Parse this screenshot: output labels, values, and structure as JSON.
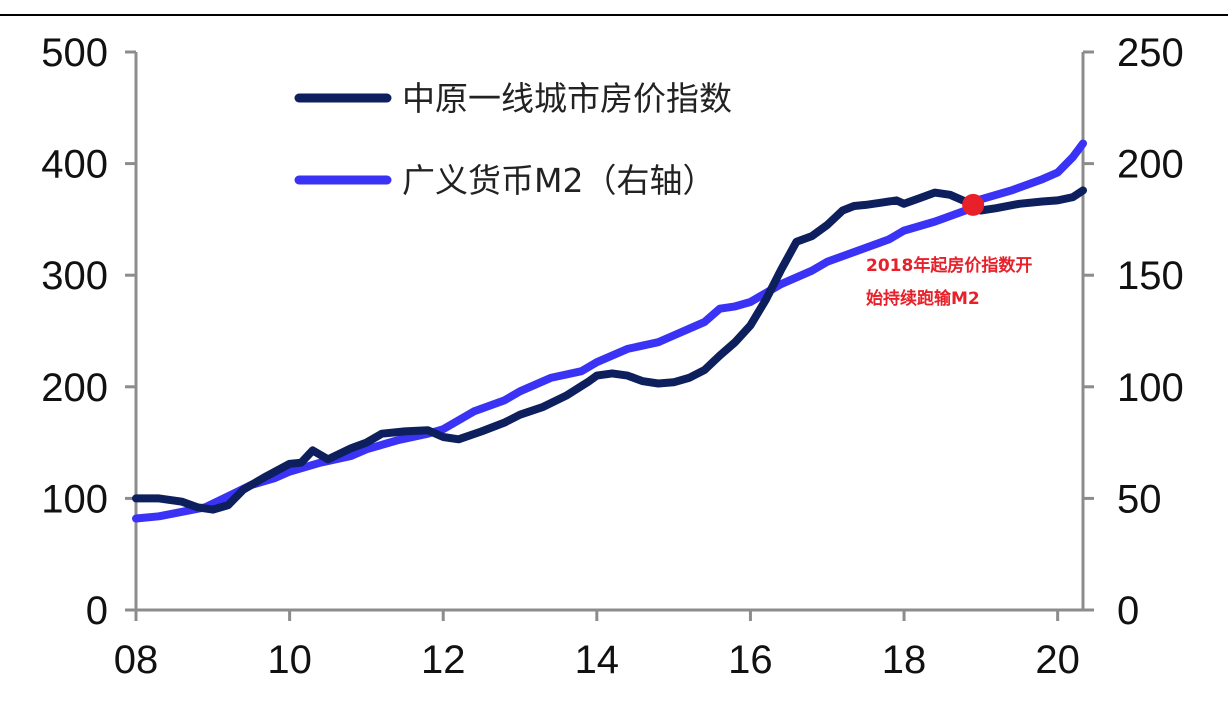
{
  "chart_data": {
    "type": "line",
    "title": "",
    "x_ticks": [
      "08",
      "10",
      "12",
      "14",
      "16",
      "18",
      "20"
    ],
    "xlim": [
      2008,
      2020.33
    ],
    "left_axis": {
      "ticks": [
        "0",
        "100",
        "200",
        "300",
        "400",
        "500"
      ],
      "ylim": [
        0,
        500
      ]
    },
    "right_axis": {
      "ticks": [
        "0",
        "50",
        "100",
        "150",
        "200",
        "250"
      ],
      "ylim": [
        0,
        250
      ]
    },
    "grid": false,
    "legend": {
      "placement": "top-left",
      "entries": [
        "中原一线城市房价指数",
        "广义货币M2（右轴）"
      ]
    },
    "series": [
      {
        "name": "中原一线城市房价指数",
        "axis": "left",
        "color": "#0d1f5c",
        "x": [
          2008.0,
          2008.3,
          2008.6,
          2008.8,
          2009.0,
          2009.2,
          2009.4,
          2009.7,
          2010.0,
          2010.15,
          2010.3,
          2010.5,
          2010.8,
          2011.0,
          2011.2,
          2011.5,
          2011.8,
          2012.0,
          2012.2,
          2012.5,
          2012.8,
          2013.0,
          2013.3,
          2013.6,
          2013.9,
          2014.0,
          2014.2,
          2014.4,
          2014.6,
          2014.8,
          2015.0,
          2015.2,
          2015.4,
          2015.6,
          2015.8,
          2016.0,
          2016.2,
          2016.4,
          2016.6,
          2016.8,
          2017.0,
          2017.2,
          2017.35,
          2017.5,
          2017.7,
          2017.9,
          2018.0,
          2018.2,
          2018.4,
          2018.6,
          2018.8,
          2019.0,
          2019.2,
          2019.5,
          2019.8,
          2020.0,
          2020.2,
          2020.33
        ],
        "y": [
          100,
          100,
          97,
          92,
          90,
          94,
          108,
          120,
          131,
          132,
          143,
          135,
          145,
          150,
          158,
          160,
          161,
          155,
          153,
          160,
          168,
          175,
          182,
          192,
          205,
          210,
          212,
          210,
          205,
          203,
          204,
          208,
          215,
          228,
          240,
          255,
          278,
          305,
          330,
          335,
          345,
          358,
          362,
          363,
          365,
          367,
          364,
          369,
          374,
          372,
          366,
          358,
          360,
          364,
          366,
          367,
          370,
          376
        ]
      },
      {
        "name": "广义货币M2（右轴）",
        "axis": "right",
        "color": "#3a33f5",
        "x": [
          2008.0,
          2008.3,
          2008.6,
          2008.9,
          2009.2,
          2009.5,
          2009.8,
          2010.0,
          2010.4,
          2010.8,
          2011.0,
          2011.4,
          2011.8,
          2012.0,
          2012.4,
          2012.8,
          2013.0,
          2013.4,
          2013.8,
          2014.0,
          2014.4,
          2014.8,
          2015.0,
          2015.4,
          2015.6,
          2015.8,
          2016.0,
          2016.4,
          2016.8,
          2017.0,
          2017.4,
          2017.8,
          2018.0,
          2018.4,
          2018.8,
          2019.0,
          2019.4,
          2019.8,
          2020.0,
          2020.2,
          2020.33
        ],
        "y": [
          41,
          42,
          44,
          46,
          51,
          56,
          59,
          62,
          66,
          69,
          72,
          76,
          79,
          81,
          89,
          94,
          98,
          104,
          107,
          111,
          117,
          120,
          123,
          129,
          135,
          136,
          138,
          146,
          152,
          156,
          161,
          166,
          170,
          174,
          179,
          184,
          188,
          193,
          196,
          203,
          209
        ]
      }
    ],
    "annotation": {
      "lines": [
        "2018年起房价指数开",
        "始持续跑输M2"
      ],
      "marker_x": 2018.9,
      "marker_y_left": 363,
      "color": "#e8202a"
    }
  }
}
